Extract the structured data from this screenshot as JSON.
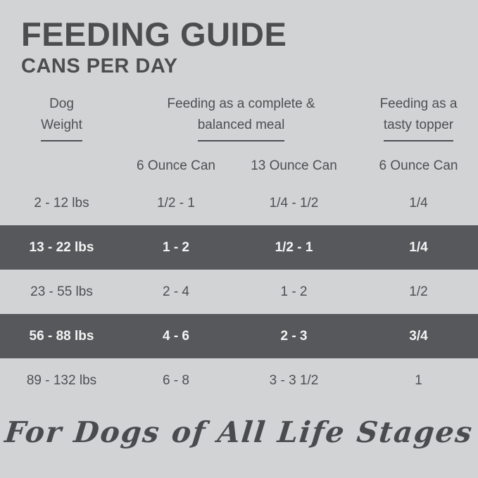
{
  "header": {
    "title": "FEEDING GUIDE",
    "subtitle": "CANS PER DAY"
  },
  "table": {
    "headers": {
      "weight_line1": "Dog",
      "weight_line2": "Weight",
      "meal_line1": "Feeding as a complete &",
      "meal_line2": "balanced meal",
      "topper_line1": "Feeding as a",
      "topper_line2": "tasty topper"
    },
    "sub_headers": {
      "meal_6oz": "6 Ounce Can",
      "meal_13oz": "13 Ounce Can",
      "topper_6oz": "6 Ounce Can"
    },
    "rows": [
      {
        "weight": "2 - 12 lbs",
        "meal_6oz": "1/2 - 1",
        "meal_13oz": "1/4 - 1/2",
        "topper_6oz": "1/4",
        "highlight": false
      },
      {
        "weight": "13 - 22 lbs",
        "meal_6oz": "1 - 2",
        "meal_13oz": "1/2 - 1",
        "topper_6oz": "1/4",
        "highlight": true
      },
      {
        "weight": "23 - 55 lbs",
        "meal_6oz": "2 - 4",
        "meal_13oz": "1 - 2",
        "topper_6oz": "1/2",
        "highlight": false
      },
      {
        "weight": "56 - 88 lbs",
        "meal_6oz": "4 - 6",
        "meal_13oz": "2 - 3",
        "topper_6oz": "3/4",
        "highlight": true
      },
      {
        "weight": "89 - 132 lbs",
        "meal_6oz": "6 - 8",
        "meal_13oz": "3 - 3 1/2",
        "topper_6oz": "1",
        "highlight": false
      }
    ]
  },
  "footer": {
    "tagline": "For Dogs of All Life Stages"
  },
  "colors": {
    "background": "#d2d3d5",
    "highlight_band": "#57585b",
    "text": "#4e4f52",
    "band_text": "#f4f4f4"
  },
  "chart_data": {
    "type": "table",
    "title": "FEEDING GUIDE — CANS PER DAY",
    "columns": [
      "Dog Weight",
      "Feeding as a complete & balanced meal — 6 Ounce Can",
      "Feeding as a complete & balanced meal — 13 Ounce Can",
      "Feeding as a tasty topper — 6 Ounce Can"
    ],
    "rows": [
      [
        "2 - 12 lbs",
        "1/2 - 1",
        "1/4 - 1/2",
        "1/4"
      ],
      [
        "13 - 22 lbs",
        "1 - 2",
        "1/2 - 1",
        "1/4"
      ],
      [
        "23 - 55 lbs",
        "2 - 4",
        "1 - 2",
        "1/2"
      ],
      [
        "56 - 88 lbs",
        "4 - 6",
        "2 - 3",
        "3/4"
      ],
      [
        "89 - 132 lbs",
        "6 - 8",
        "3 - 3 1/2",
        "1"
      ]
    ],
    "highlighted_rows": [
      1,
      3
    ],
    "footnote": "For Dogs of All Life Stages"
  }
}
